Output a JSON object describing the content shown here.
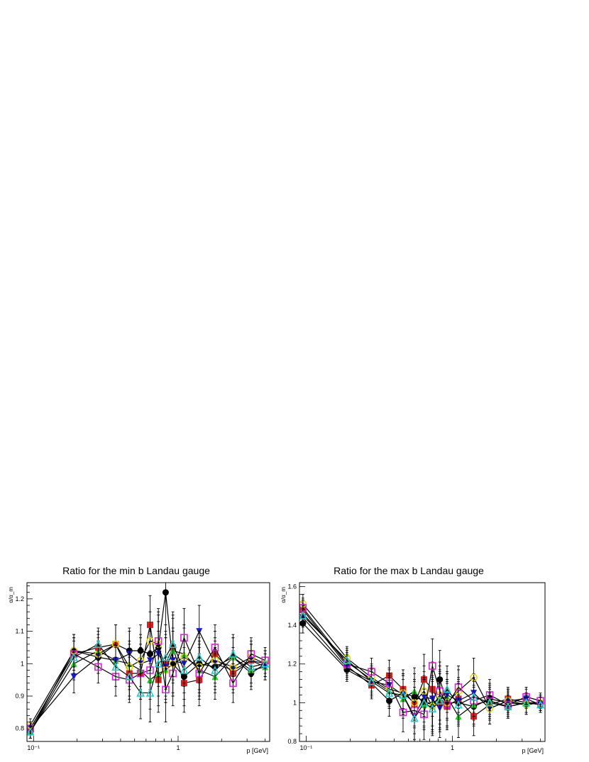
{
  "chart_data": [
    {
      "type": "line",
      "title": "Ratio for the min b Landau gauge",
      "xlabel": "p [GeV]",
      "ylabel": "α/α_m",
      "xscale": "log",
      "xlim": [
        0.09,
        4.3
      ],
      "ylim": [
        0.76,
        1.25
      ],
      "xticks": [
        0.1,
        1
      ],
      "xtick_labels": [
        "10⁻¹",
        "1"
      ],
      "yticks": [
        0.8,
        0.9,
        1.0,
        1.1,
        1.2
      ],
      "ytick_labels": [
        "0.8",
        "0.9",
        "1",
        "1.1",
        "1.2"
      ],
      "grid": false,
      "legend": "none",
      "series": [
        {
          "marker": "circle",
          "color": "#000000",
          "x": [
            0.095,
            0.19,
            0.28,
            0.37,
            0.46,
            0.55,
            0.64,
            0.73,
            0.82,
            0.92,
            1.1,
            1.4,
            1.8,
            2.4,
            3.2,
            4.0
          ],
          "y": [
            0.79,
            1.04,
            1.02,
            1.06,
            1.04,
            1.04,
            1.03,
            1.05,
            1.22,
            1.0,
            0.96,
            1.0,
            0.99,
            1.02,
            0.97,
            1.0
          ],
          "err": [
            0.02,
            0.05,
            0.05,
            0.06,
            0.07,
            0.08,
            0.09,
            0.1,
            0.1,
            0.1,
            0.09,
            0.08,
            0.07,
            0.06,
            0.05,
            0.04
          ]
        },
        {
          "marker": "square",
          "color": "#d62020",
          "x": [
            0.095,
            0.19,
            0.28,
            0.37,
            0.46,
            0.55,
            0.64,
            0.73,
            0.82,
            0.92,
            1.1,
            1.4,
            1.8,
            2.4,
            3.2,
            4.0
          ],
          "y": [
            0.8,
            1.03,
            1.05,
            1.06,
            0.97,
            0.97,
            1.12,
            0.95,
            1.0,
            1.05,
            0.94,
            0.95,
            1.03,
            0.97,
            1.01,
            1.0
          ],
          "err": [
            0.02,
            0.05,
            0.05,
            0.06,
            0.07,
            0.08,
            0.09,
            0.1,
            0.1,
            0.1,
            0.09,
            0.08,
            0.07,
            0.06,
            0.05,
            0.04
          ]
        },
        {
          "marker": "triangle-up",
          "color": "#22cc22",
          "x": [
            0.095,
            0.19,
            0.28,
            0.37,
            0.46,
            0.55,
            0.64,
            0.73,
            0.82,
            0.92,
            1.1,
            1.4,
            1.8,
            2.4,
            3.2,
            4.0
          ],
          "y": [
            0.79,
            1.0,
            1.04,
            1.01,
            1.0,
            0.98,
            0.95,
            0.97,
            0.98,
            1.04,
            1.03,
            0.98,
            0.96,
            1.02,
            0.98,
            0.99
          ],
          "err": [
            0.02,
            0.05,
            0.05,
            0.06,
            0.07,
            0.08,
            0.09,
            0.1,
            0.1,
            0.1,
            0.09,
            0.08,
            0.07,
            0.06,
            0.05,
            0.04
          ]
        },
        {
          "marker": "triangle-down",
          "color": "#1a1ad6",
          "x": [
            0.095,
            0.19,
            0.28,
            0.37,
            0.46,
            0.55,
            0.64,
            0.73,
            0.82,
            0.92,
            1.1,
            1.4,
            1.8,
            2.4,
            3.2,
            4.0
          ],
          "y": [
            0.8,
            0.96,
            1.02,
            1.01,
            1.03,
            1.0,
            1.01,
            1.03,
            0.99,
            1.01,
            1.0,
            1.1,
            1.0,
            0.98,
            1.01,
            0.99
          ],
          "err": [
            0.02,
            0.05,
            0.05,
            0.06,
            0.07,
            0.08,
            0.09,
            0.1,
            0.1,
            0.1,
            0.09,
            0.08,
            0.07,
            0.06,
            0.05,
            0.04
          ]
        },
        {
          "marker": "circle-open",
          "color": "#e8d800",
          "x": [
            0.095,
            0.19,
            0.28,
            0.37,
            0.46,
            0.55,
            0.64,
            0.73,
            0.82,
            0.92,
            1.1,
            1.4,
            1.8,
            2.4,
            3.2,
            4.0
          ],
          "y": [
            0.81,
            1.04,
            1.03,
            1.06,
            0.99,
            1.01,
            1.07,
            1.06,
            0.98,
            1.0,
            1.02,
            0.99,
            1.01,
            0.99,
            1.02,
            1.0
          ],
          "err": [
            0.02,
            0.05,
            0.05,
            0.06,
            0.07,
            0.08,
            0.09,
            0.1,
            0.1,
            0.1,
            0.09,
            0.08,
            0.07,
            0.06,
            0.05,
            0.04
          ]
        },
        {
          "marker": "square-open",
          "color": "#dd22dd",
          "x": [
            0.095,
            0.19,
            0.28,
            0.37,
            0.46,
            0.55,
            0.64,
            0.73,
            0.82,
            0.92,
            1.1,
            1.4,
            1.8,
            2.4,
            3.2,
            4.0
          ],
          "y": [
            0.8,
            1.03,
            0.99,
            0.96,
            0.95,
            0.97,
            0.98,
            1.07,
            0.92,
            0.97,
            1.08,
            0.97,
            1.05,
            0.94,
            1.03,
            1.01
          ],
          "err": [
            0.02,
            0.05,
            0.05,
            0.06,
            0.07,
            0.08,
            0.09,
            0.1,
            0.1,
            0.1,
            0.09,
            0.08,
            0.07,
            0.06,
            0.05,
            0.04
          ]
        },
        {
          "marker": "triangle-open",
          "color": "#22cccc",
          "x": [
            0.095,
            0.19,
            0.28,
            0.37,
            0.46,
            0.55,
            0.64,
            0.73,
            0.82,
            0.92,
            1.1,
            1.4,
            1.8,
            2.4,
            3.2,
            4.0
          ],
          "y": [
            0.79,
            1.02,
            1.06,
            0.99,
            0.96,
            0.91,
            0.91,
            1.0,
            1.02,
            1.06,
            0.98,
            1.02,
            0.98,
            1.03,
            0.99,
            1.0
          ],
          "err": [
            0.02,
            0.05,
            0.05,
            0.06,
            0.07,
            0.08,
            0.09,
            0.1,
            0.1,
            0.1,
            0.09,
            0.08,
            0.07,
            0.06,
            0.05,
            0.04
          ]
        }
      ]
    },
    {
      "type": "line",
      "title": "Ratio for the max b Landau gauge",
      "xlabel": "p [GeV]",
      "ylabel": "α/α_m",
      "xscale": "log",
      "xlim": [
        0.09,
        4.3
      ],
      "ylim": [
        0.8,
        1.62
      ],
      "xticks": [
        0.1,
        1
      ],
      "xtick_labels": [
        "10⁻¹",
        "1"
      ],
      "yticks": [
        0.8,
        1.0,
        1.2,
        1.4,
        1.6
      ],
      "ytick_labels": [
        "0.8",
        "1",
        "1.2",
        "1.4",
        "1.6"
      ],
      "grid": false,
      "legend": "none",
      "series": [
        {
          "marker": "circle",
          "color": "#000000",
          "x": [
            0.095,
            0.19,
            0.28,
            0.37,
            0.46,
            0.55,
            0.64,
            0.73,
            0.82,
            0.92,
            1.1,
            1.4,
            1.8,
            2.4,
            3.2,
            4.0
          ],
          "y": [
            1.41,
            1.17,
            1.1,
            1.01,
            1.05,
            1.03,
            1.01,
            0.99,
            1.12,
            1.0,
            1.0,
            0.98,
            1.02,
            1.0,
            0.99,
            1.0
          ],
          "err": [
            0.05,
            0.06,
            0.07,
            0.08,
            0.1,
            0.12,
            0.13,
            0.14,
            0.15,
            0.12,
            0.11,
            0.1,
            0.08,
            0.06,
            0.05,
            0.04
          ]
        },
        {
          "marker": "square",
          "color": "#d62020",
          "x": [
            0.095,
            0.19,
            0.28,
            0.37,
            0.46,
            0.55,
            0.64,
            0.73,
            0.82,
            0.92,
            1.1,
            1.4,
            1.8,
            2.4,
            3.2,
            4.0
          ],
          "y": [
            1.48,
            1.19,
            1.09,
            1.14,
            1.07,
            0.99,
            1.12,
            1.07,
            1.0,
            0.98,
            1.02,
            0.93,
            0.99,
            1.02,
            1.0,
            0.99
          ],
          "err": [
            0.05,
            0.06,
            0.07,
            0.08,
            0.1,
            0.12,
            0.13,
            0.14,
            0.15,
            0.12,
            0.11,
            0.1,
            0.08,
            0.06,
            0.05,
            0.04
          ]
        },
        {
          "marker": "triangle-up",
          "color": "#22cc22",
          "x": [
            0.095,
            0.19,
            0.28,
            0.37,
            0.46,
            0.55,
            0.64,
            0.73,
            0.82,
            0.92,
            1.1,
            1.4,
            1.8,
            2.4,
            3.2,
            4.0
          ],
          "y": [
            1.46,
            1.21,
            1.12,
            1.06,
            1.02,
            1.06,
            0.99,
            1.0,
            1.02,
            1.03,
            0.93,
            0.99,
            1.01,
            0.98,
            1.0,
            1.0
          ],
          "err": [
            0.05,
            0.06,
            0.07,
            0.08,
            0.1,
            0.12,
            0.13,
            0.14,
            0.15,
            0.12,
            0.11,
            0.1,
            0.08,
            0.06,
            0.05,
            0.04
          ]
        },
        {
          "marker": "triangle-down",
          "color": "#1a1ad6",
          "x": [
            0.095,
            0.19,
            0.28,
            0.37,
            0.46,
            0.55,
            0.64,
            0.73,
            0.82,
            0.92,
            1.1,
            1.4,
            1.8,
            2.4,
            3.2,
            4.0
          ],
          "y": [
            1.44,
            1.18,
            1.11,
            1.09,
            1.04,
            0.93,
            1.03,
            1.02,
            0.97,
            1.04,
            1.01,
            1.05,
            0.97,
            1.01,
            1.02,
            0.99
          ],
          "err": [
            0.05,
            0.06,
            0.07,
            0.08,
            0.1,
            0.12,
            0.13,
            0.14,
            0.15,
            0.12,
            0.11,
            0.1,
            0.08,
            0.06,
            0.05,
            0.04
          ]
        },
        {
          "marker": "circle-open",
          "color": "#e8d800",
          "x": [
            0.095,
            0.19,
            0.28,
            0.37,
            0.46,
            0.55,
            0.64,
            0.73,
            0.82,
            0.92,
            1.1,
            1.4,
            1.8,
            2.4,
            3.2,
            4.0
          ],
          "y": [
            1.51,
            1.23,
            1.13,
            1.07,
            1.05,
            1.0,
            1.06,
            0.98,
            1.04,
            1.0,
            1.06,
            1.13,
            0.97,
            1.01,
            0.99,
            1.0
          ],
          "err": [
            0.05,
            0.06,
            0.07,
            0.08,
            0.1,
            0.12,
            0.13,
            0.14,
            0.15,
            0.12,
            0.11,
            0.1,
            0.08,
            0.06,
            0.05,
            0.04
          ]
        },
        {
          "marker": "square-open",
          "color": "#dd22dd",
          "x": [
            0.095,
            0.19,
            0.28,
            0.37,
            0.46,
            0.55,
            0.64,
            0.73,
            0.82,
            0.92,
            1.1,
            1.4,
            1.8,
            2.4,
            3.2,
            4.0
          ],
          "y": [
            1.49,
            1.2,
            1.16,
            1.1,
            0.95,
            0.96,
            0.94,
            1.19,
            1.06,
            0.99,
            1.08,
            1.01,
            1.04,
            0.99,
            1.03,
            1.01
          ],
          "err": [
            0.05,
            0.06,
            0.07,
            0.08,
            0.1,
            0.12,
            0.13,
            0.14,
            0.15,
            0.12,
            0.11,
            0.1,
            0.08,
            0.06,
            0.05,
            0.04
          ]
        },
        {
          "marker": "triangle-open",
          "color": "#22cccc",
          "x": [
            0.095,
            0.19,
            0.28,
            0.37,
            0.46,
            0.55,
            0.64,
            0.73,
            0.82,
            0.92,
            1.1,
            1.4,
            1.8,
            2.4,
            3.2,
            4.0
          ],
          "y": [
            1.45,
            1.22,
            1.11,
            1.05,
            1.04,
            0.92,
            1.0,
            0.97,
            1.01,
            1.07,
            0.99,
            1.03,
            1.0,
            0.98,
            1.0,
            0.99
          ],
          "err": [
            0.05,
            0.06,
            0.07,
            0.08,
            0.1,
            0.12,
            0.13,
            0.14,
            0.15,
            0.12,
            0.11,
            0.1,
            0.08,
            0.06,
            0.05,
            0.04
          ]
        }
      ]
    }
  ]
}
